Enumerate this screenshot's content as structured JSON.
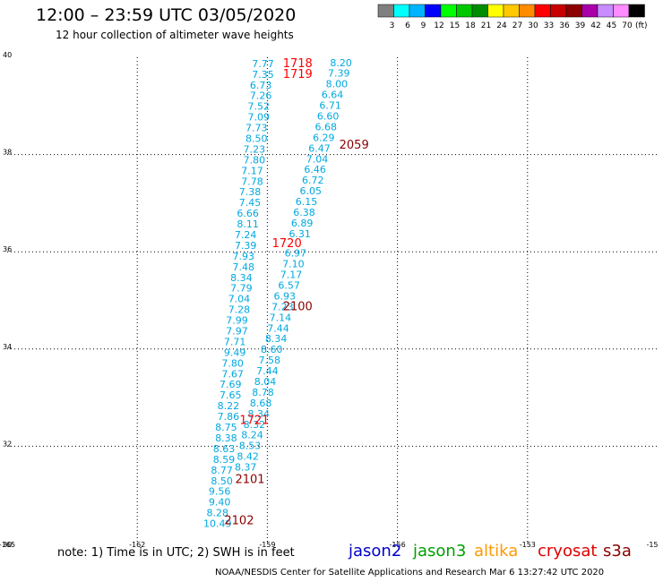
{
  "header": {
    "title": "12:00 – 23:59 UTC 03/05/2020",
    "subtitle": "12 hour collection of altimeter wave heights"
  },
  "colorbar": {
    "unit": "(ft)",
    "bins": [
      {
        "label": "3",
        "color": "#808080"
      },
      {
        "label": "6",
        "color": "#00ffff"
      },
      {
        "label": "9",
        "color": "#00b4ff"
      },
      {
        "label": "12",
        "color": "#0000ff"
      },
      {
        "label": "15",
        "color": "#00ff00"
      },
      {
        "label": "18",
        "color": "#00c800"
      },
      {
        "label": "21",
        "color": "#008c00"
      },
      {
        "label": "24",
        "color": "#ffff00"
      },
      {
        "label": "27",
        "color": "#ffc800"
      },
      {
        "label": "30",
        "color": "#ff8c00"
      },
      {
        "label": "33",
        "color": "#ff0000"
      },
      {
        "label": "36",
        "color": "#c80000"
      },
      {
        "label": "39",
        "color": "#8c0000"
      },
      {
        "label": "42",
        "color": "#aa00aa"
      },
      {
        "label": "45",
        "color": "#c88cff"
      },
      {
        "label": "70",
        "color": "#ff8cff"
      },
      {
        "label": "",
        "color": "#000000"
      }
    ]
  },
  "map": {
    "lon_ticks": [
      "-165",
      "-162",
      "-159",
      "-156",
      "-153",
      "-15"
    ],
    "lat_ticks": [
      "30",
      "32",
      "34",
      "36",
      "38",
      "40"
    ],
    "grid": "dotted",
    "tracks": [
      {
        "color": "#00a8e0",
        "points": [
          {
            "lon": -159.1,
            "lat": 39.8,
            "v": "7.77"
          },
          {
            "lon": -159.1,
            "lat": 39.58,
            "v": "7.35"
          },
          {
            "lon": -159.15,
            "lat": 39.36,
            "v": "6.73"
          },
          {
            "lon": -159.15,
            "lat": 39.14,
            "v": "7.26"
          },
          {
            "lon": -159.2,
            "lat": 38.92,
            "v": "7.52"
          },
          {
            "lon": -159.2,
            "lat": 38.7,
            "v": "7.09"
          },
          {
            "lon": -159.25,
            "lat": 38.48,
            "v": "7.73"
          },
          {
            "lon": -159.25,
            "lat": 38.26,
            "v": "8.50"
          },
          {
            "lon": -159.3,
            "lat": 38.04,
            "v": "7.23"
          },
          {
            "lon": -159.3,
            "lat": 37.82,
            "v": "7.80"
          },
          {
            "lon": -159.35,
            "lat": 37.6,
            "v": "7.17"
          },
          {
            "lon": -159.35,
            "lat": 37.38,
            "v": "7.78"
          },
          {
            "lon": -159.4,
            "lat": 37.16,
            "v": "7.38"
          },
          {
            "lon": -159.4,
            "lat": 36.94,
            "v": "7.45"
          },
          {
            "lon": -159.45,
            "lat": 36.72,
            "v": "6.66"
          },
          {
            "lon": -159.45,
            "lat": 36.5,
            "v": "8.11"
          },
          {
            "lon": -159.5,
            "lat": 36.28,
            "v": "7.24"
          },
          {
            "lon": -159.5,
            "lat": 36.06,
            "v": "7.39"
          },
          {
            "lon": -159.55,
            "lat": 35.84,
            "v": "7.93"
          },
          {
            "lon": -159.55,
            "lat": 35.62,
            "v": "7.48"
          },
          {
            "lon": -159.6,
            "lat": 35.4,
            "v": "8.34"
          },
          {
            "lon": -159.6,
            "lat": 35.18,
            "v": "7.79"
          },
          {
            "lon": -159.65,
            "lat": 34.96,
            "v": "7.04"
          },
          {
            "lon": -159.65,
            "lat": 34.74,
            "v": "7.28"
          },
          {
            "lon": -159.7,
            "lat": 34.52,
            "v": "7.99"
          },
          {
            "lon": -159.7,
            "lat": 34.3,
            "v": "7.97"
          },
          {
            "lon": -159.75,
            "lat": 34.08,
            "v": "7.71"
          },
          {
            "lon": -159.75,
            "lat": 33.86,
            "v": "9.49"
          },
          {
            "lon": -159.8,
            "lat": 33.64,
            "v": "7.80"
          },
          {
            "lon": -159.8,
            "lat": 33.42,
            "v": "7.67"
          },
          {
            "lon": -159.85,
            "lat": 33.2,
            "v": "7.69"
          },
          {
            "lon": -159.85,
            "lat": 32.98,
            "v": "7.65"
          },
          {
            "lon": -159.9,
            "lat": 32.76,
            "v": "8.22"
          },
          {
            "lon": -159.9,
            "lat": 32.54,
            "v": "7.86"
          },
          {
            "lon": -159.95,
            "lat": 32.32,
            "v": "8.75"
          },
          {
            "lon": -159.95,
            "lat": 32.1,
            "v": "8.38"
          },
          {
            "lon": -160.0,
            "lat": 31.88,
            "v": "8.63"
          },
          {
            "lon": -160.0,
            "lat": 31.66,
            "v": "8.59"
          },
          {
            "lon": -160.05,
            "lat": 31.44,
            "v": "8.77"
          },
          {
            "lon": -160.05,
            "lat": 31.22,
            "v": "8.50"
          },
          {
            "lon": -160.1,
            "lat": 31.0,
            "v": "9.56"
          },
          {
            "lon": -160.1,
            "lat": 30.78,
            "v": "9.40"
          },
          {
            "lon": -160.15,
            "lat": 30.56,
            "v": "8.28"
          },
          {
            "lon": -160.15,
            "lat": 30.34,
            "v": "10.49"
          }
        ]
      },
      {
        "color": "#00a8e0",
        "points": [
          {
            "lon": -157.3,
            "lat": 39.82,
            "v": "8.20"
          },
          {
            "lon": -157.35,
            "lat": 39.6,
            "v": "7.39"
          },
          {
            "lon": -157.4,
            "lat": 39.38,
            "v": "8.00"
          },
          {
            "lon": -157.5,
            "lat": 39.16,
            "v": "6.64"
          },
          {
            "lon": -157.55,
            "lat": 38.94,
            "v": "6.71"
          },
          {
            "lon": -157.6,
            "lat": 38.72,
            "v": "6.60"
          },
          {
            "lon": -157.65,
            "lat": 38.5,
            "v": "6.68"
          },
          {
            "lon": -157.7,
            "lat": 38.28,
            "v": "6.29"
          },
          {
            "lon": -157.8,
            "lat": 38.06,
            "v": "6.47"
          },
          {
            "lon": -157.85,
            "lat": 37.84,
            "v": "7.04"
          },
          {
            "lon": -157.9,
            "lat": 37.62,
            "v": "6.46"
          },
          {
            "lon": -157.95,
            "lat": 37.4,
            "v": "6.72"
          },
          {
            "lon": -158.0,
            "lat": 37.18,
            "v": "6.05"
          },
          {
            "lon": -158.1,
            "lat": 36.96,
            "v": "6.15"
          },
          {
            "lon": -158.15,
            "lat": 36.74,
            "v": "6.38"
          },
          {
            "lon": -158.2,
            "lat": 36.52,
            "v": "6.89"
          },
          {
            "lon": -158.25,
            "lat": 36.3,
            "v": "6.31"
          },
          {
            "lon": -158.35,
            "lat": 35.9,
            "v": "6.97"
          },
          {
            "lon": -158.4,
            "lat": 35.68,
            "v": "7.10"
          },
          {
            "lon": -158.45,
            "lat": 35.46,
            "v": "7.17"
          },
          {
            "lon": -158.5,
            "lat": 35.24,
            "v": "6.57"
          },
          {
            "lon": -158.6,
            "lat": 35.02,
            "v": "6.93"
          },
          {
            "lon": -158.65,
            "lat": 34.8,
            "v": "7.23"
          },
          {
            "lon": -158.7,
            "lat": 34.58,
            "v": "7.14"
          },
          {
            "lon": -158.75,
            "lat": 34.36,
            "v": "7.44"
          },
          {
            "lon": -158.8,
            "lat": 34.14,
            "v": "8.34"
          },
          {
            "lon": -158.9,
            "lat": 33.92,
            "v": "8.60"
          },
          {
            "lon": -158.95,
            "lat": 33.7,
            "v": "7.58"
          },
          {
            "lon": -159.0,
            "lat": 33.48,
            "v": "7.44"
          },
          {
            "lon": -159.05,
            "lat": 33.26,
            "v": "8.04"
          },
          {
            "lon": -159.1,
            "lat": 33.04,
            "v": "8.78"
          },
          {
            "lon": -159.15,
            "lat": 32.82,
            "v": "8.68"
          },
          {
            "lon": -159.2,
            "lat": 32.6,
            "v": "8.34"
          },
          {
            "lon": -159.3,
            "lat": 32.38,
            "v": "8.32"
          },
          {
            "lon": -159.35,
            "lat": 32.16,
            "v": "8.24"
          },
          {
            "lon": -159.4,
            "lat": 31.94,
            "v": "8.53"
          },
          {
            "lon": -159.45,
            "lat": 31.72,
            "v": "8.42"
          },
          {
            "lon": -159.5,
            "lat": 31.5,
            "v": "8.37"
          }
        ]
      }
    ],
    "time_labels": [
      {
        "lon": -158.3,
        "lat": 39.8,
        "t": "1718",
        "color": "#ff0000"
      },
      {
        "lon": -158.3,
        "lat": 39.58,
        "t": "1719",
        "color": "#ff0000"
      },
      {
        "lon": -157.0,
        "lat": 38.12,
        "t": "2059",
        "color": "#8c0000"
      },
      {
        "lon": -158.55,
        "lat": 36.1,
        "t": "1720",
        "color": "#ff0000"
      },
      {
        "lon": -158.3,
        "lat": 34.8,
        "t": "2100",
        "color": "#8c0000"
      },
      {
        "lon": -159.3,
        "lat": 32.46,
        "t": "1721",
        "color": "#ff0000"
      },
      {
        "lon": -159.4,
        "lat": 31.24,
        "t": "2101",
        "color": "#8c0000"
      },
      {
        "lon": -159.65,
        "lat": 30.4,
        "t": "2102",
        "color": "#8c0000"
      }
    ]
  },
  "notes": {
    "text": "note:  1) Time is in UTC;  2) SWH is in feet"
  },
  "legend": [
    {
      "label": "jason2",
      "color": "#0000cc"
    },
    {
      "label": "jason3",
      "color": "#00a000"
    },
    {
      "label": "altika",
      "color": "#ff9900"
    },
    {
      "label": "cryosat",
      "color": "#e00000"
    },
    {
      "label": "s3a",
      "color": "#8c0000"
    }
  ],
  "credit": "NOAA/NESDIS Center for Satellite Applications and Research    Mar  6 13:27:42 UTC 2020"
}
